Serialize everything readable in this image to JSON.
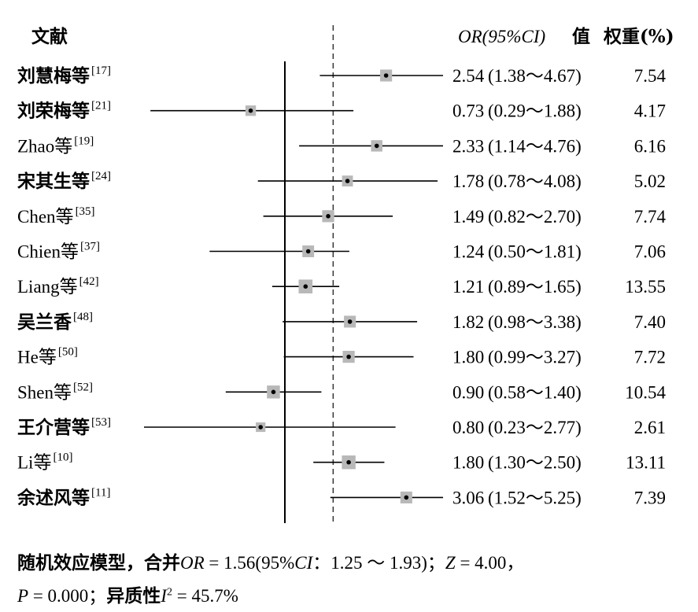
{
  "chart_data": {
    "type": "forest",
    "header": {
      "study": "文献",
      "or_label": "OR",
      "ci_label": "(95%CI)",
      "value_label": "值",
      "weight_label": "权重(%)"
    },
    "studies": [
      {
        "name": "刘慧梅等",
        "ref": "[17]",
        "or": 2.54,
        "lo": 1.38,
        "hi": 4.67,
        "weight": 7.54,
        "or_text": "2.54",
        "ci_text": "(1.38～4.67)",
        "weight_text": "7.54"
      },
      {
        "name": "刘荣梅等",
        "ref": "[21]",
        "or": 0.73,
        "lo": 0.29,
        "hi": 1.88,
        "weight": 4.17,
        "or_text": "0.73",
        "ci_text": "(0.29～1.88)",
        "weight_text": "4.17"
      },
      {
        "name": "Zhao等",
        "ref": "[19]",
        "or": 2.33,
        "lo": 1.14,
        "hi": 4.76,
        "weight": 6.16,
        "or_text": "2.33",
        "ci_text": "(1.14～4.76)",
        "weight_text": "6.16"
      },
      {
        "name": "宋其生等",
        "ref": "[24]",
        "or": 1.78,
        "lo": 0.78,
        "hi": 4.08,
        "weight": 5.02,
        "or_text": "1.78",
        "ci_text": "(0.78～4.08)",
        "weight_text": "5.02"
      },
      {
        "name": "Chen等",
        "ref": "[35]",
        "or": 1.49,
        "lo": 0.82,
        "hi": 2.7,
        "weight": 7.74,
        "or_text": "1.49",
        "ci_text": "(0.82～2.70)",
        "weight_text": "7.74"
      },
      {
        "name": "Chien等",
        "ref": "[37]",
        "or": 1.24,
        "lo": 0.5,
        "hi": 1.81,
        "weight": 7.06,
        "or_text": "1.24",
        "ci_text": "(0.50～1.81)",
        "weight_text": "7.06"
      },
      {
        "name": "Liang等",
        "ref": "[42]",
        "or": 1.21,
        "lo": 0.89,
        "hi": 1.65,
        "weight": 13.55,
        "or_text": "1.21",
        "ci_text": "(0.89～1.65)",
        "weight_text": "13.55"
      },
      {
        "name": "吴兰香",
        "ref": "[48]",
        "or": 1.82,
        "lo": 0.98,
        "hi": 3.38,
        "weight": 7.4,
        "or_text": "1.82",
        "ci_text": "(0.98～3.38)",
        "weight_text": "7.40"
      },
      {
        "name": "He等",
        "ref": "[50]",
        "or": 1.8,
        "lo": 0.99,
        "hi": 3.27,
        "weight": 7.72,
        "or_text": "1.80",
        "ci_text": "(0.99～3.27)",
        "weight_text": "7.72"
      },
      {
        "name": "Shen等",
        "ref": "[52]",
        "or": 0.9,
        "lo": 0.58,
        "hi": 1.4,
        "weight": 10.54,
        "or_text": "0.90",
        "ci_text": "(0.58～1.40)",
        "weight_text": "10.54"
      },
      {
        "name": "王介营等",
        "ref": "[53]",
        "or": 0.8,
        "lo": 0.23,
        "hi": 2.77,
        "weight": 2.61,
        "or_text": "0.80",
        "ci_text": "(0.23～2.77)",
        "weight_text": "2.61"
      },
      {
        "name": "Li等",
        "ref": "[10]",
        "or": 1.8,
        "lo": 1.3,
        "hi": 2.5,
        "weight": 13.11,
        "or_text": "1.80",
        "ci_text": "(1.30～2.50)",
        "weight_text": "13.11"
      },
      {
        "name": "余述风等",
        "ref": "[11]",
        "or": 3.06,
        "lo": 1.52,
        "hi": 5.25,
        "weight": 7.39,
        "or_text": "3.06",
        "ci_text": "(1.52～5.25)",
        "weight_text": "7.39"
      }
    ],
    "x_scale": "log",
    "null_line": 1,
    "pooled_line": 1.56,
    "summary": {
      "model_label": "随机效应模型，合并",
      "or_label": "OR",
      "or_value": " = 1.56",
      "ci_open": "(95%",
      "ci_label": "CI",
      "ci_values": "：1.25 ～ 1.93)；",
      "z_label": "Z",
      "z_value": " = 4.00，",
      "p_label": "P",
      "p_value": " = 0.000；",
      "het_label": "异质性",
      "i_label": "I",
      "i_sup": "2",
      "i_value": " = 45.7%"
    }
  },
  "colors": {
    "box": "#b8b8b8",
    "line": "#000000"
  }
}
